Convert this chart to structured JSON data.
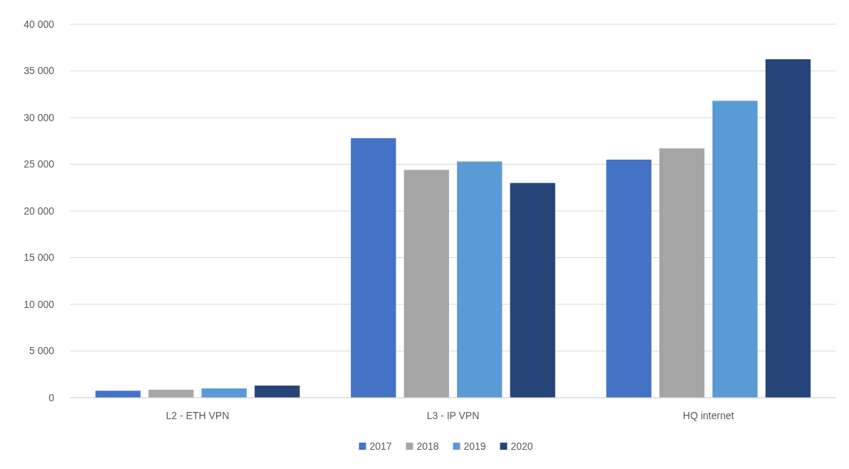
{
  "chart_data": {
    "type": "bar",
    "categories": [
      "L2 - ETH VPN",
      "L3 - IP VPN",
      "HQ internet"
    ],
    "series": [
      {
        "name": "2017",
        "color": "#4472c4",
        "values": [
          750,
          27800,
          25500
        ]
      },
      {
        "name": "2018",
        "color": "#a5a5a5",
        "values": [
          850,
          24400,
          26700
        ]
      },
      {
        "name": "2019",
        "color": "#5b9bd5",
        "values": [
          1000,
          25300,
          31800
        ]
      },
      {
        "name": "2020",
        "color": "#264478",
        "values": [
          1300,
          23000,
          36250
        ]
      }
    ],
    "ylim": [
      0,
      40000
    ],
    "yticks": [
      {
        "value": 0,
        "label": "0"
      },
      {
        "value": 5000,
        "label": "5 000"
      },
      {
        "value": 10000,
        "label": "10 000"
      },
      {
        "value": 15000,
        "label": "15 000"
      },
      {
        "value": 20000,
        "label": "20 000"
      },
      {
        "value": 25000,
        "label": "25 000"
      },
      {
        "value": 30000,
        "label": "30 000"
      },
      {
        "value": 35000,
        "label": "35 000"
      },
      {
        "value": 40000,
        "label": "40 000"
      }
    ],
    "grid": "y",
    "legend": "bottom"
  }
}
